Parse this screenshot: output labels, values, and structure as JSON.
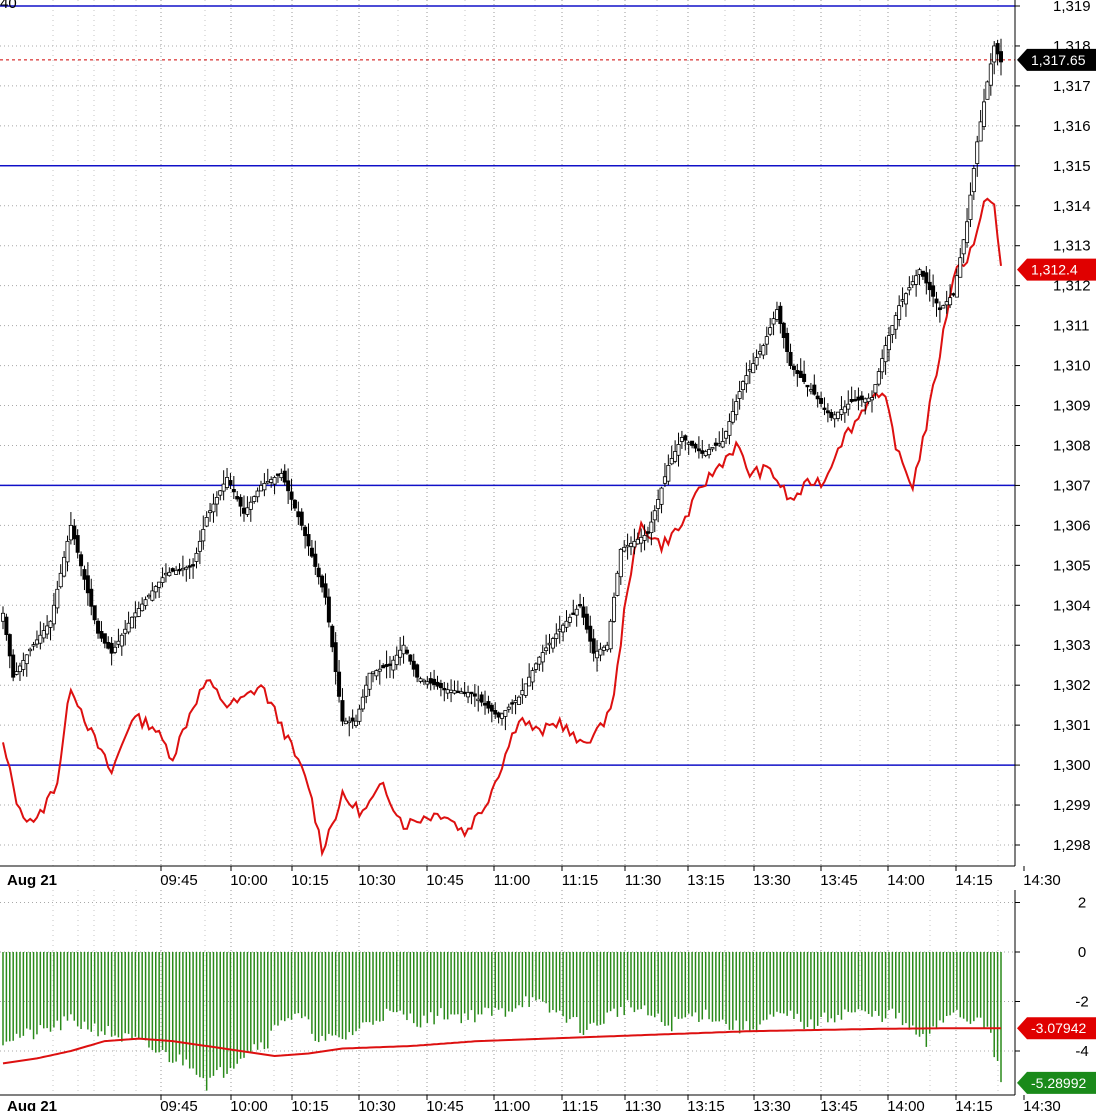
{
  "chart_data": [
    {
      "type": "candlestick",
      "y_ticks": [
        "1,298",
        "1,299",
        "1,300",
        "1,301",
        "1,302",
        "1,303",
        "1,304",
        "1,305",
        "1,306",
        "1,307",
        "1,308",
        "1,309",
        "1,310",
        "1,311",
        "1,312",
        "1,313",
        "1,314",
        "1,315",
        "1,316",
        "1,317",
        "1,318",
        "1,319"
      ],
      "y_tick_values": [
        1298,
        1299,
        1300,
        1301,
        1302,
        1303,
        1304,
        1305,
        1306,
        1307,
        1308,
        1309,
        1310,
        1311,
        1312,
        1313,
        1314,
        1315,
        1316,
        1317,
        1318,
        1319
      ],
      "ylim": [
        1297.6,
        1319.2
      ],
      "x_date_label": "Aug 21",
      "x_ticks": [
        "09:45",
        "10:00",
        "10:15",
        "10:30",
        "10:45",
        "11:00",
        "11:15",
        "11:30",
        "13:15",
        "13:30",
        "13:45",
        "14:00",
        "14:15",
        "14:30"
      ],
      "top_left_fragment": "40",
      "horizontal_lines": [
        1300,
        1307,
        1315,
        1319
      ],
      "last_price_line": 1317.65,
      "badges": [
        {
          "text": "1,317.65",
          "value": 1317.65,
          "color": "#000000"
        },
        {
          "text": "1,312.4",
          "value": 1312.4,
          "color": "#e00000"
        }
      ],
      "candle_key_points": [
        [
          0,
          1303.8
        ],
        [
          3,
          1302.2
        ],
        [
          8,
          1302.9
        ],
        [
          14,
          1303.6
        ],
        [
          20,
          1306.0
        ],
        [
          28,
          1303.3
        ],
        [
          32,
          1302.8
        ],
        [
          38,
          1303.7
        ],
        [
          48,
          1304.8
        ],
        [
          56,
          1305.0
        ],
        [
          60,
          1306.2
        ],
        [
          66,
          1307.2
        ],
        [
          71,
          1306.3
        ],
        [
          76,
          1307.0
        ],
        [
          82,
          1307.3
        ],
        [
          88,
          1306.0
        ],
        [
          95,
          1304.2
        ],
        [
          100,
          1301.1
        ],
        [
          104,
          1301.1
        ],
        [
          108,
          1302.3
        ],
        [
          114,
          1302.5
        ],
        [
          118,
          1303.0
        ],
        [
          122,
          1302.2
        ],
        [
          130,
          1301.9
        ],
        [
          138,
          1301.8
        ],
        [
          146,
          1301.2
        ],
        [
          152,
          1301.7
        ],
        [
          158,
          1302.7
        ],
        [
          164,
          1303.4
        ],
        [
          170,
          1304.0
        ],
        [
          174,
          1302.8
        ],
        [
          178,
          1303.0
        ],
        [
          182,
          1305.4
        ],
        [
          190,
          1305.8
        ],
        [
          196,
          1307.5
        ],
        [
          200,
          1308.2
        ],
        [
          206,
          1307.8
        ],
        [
          212,
          1308.1
        ],
        [
          218,
          1309.6
        ],
        [
          224,
          1310.5
        ],
        [
          228,
          1311.4
        ],
        [
          232,
          1310.0
        ],
        [
          238,
          1309.4
        ],
        [
          244,
          1308.7
        ],
        [
          250,
          1309.1
        ],
        [
          256,
          1309.2
        ],
        [
          260,
          1310.5
        ],
        [
          264,
          1311.5
        ],
        [
          270,
          1312.4
        ],
        [
          276,
          1311.4
        ],
        [
          280,
          1311.8
        ],
        [
          284,
          1313.6
        ],
        [
          287,
          1315.6
        ],
        [
          290,
          1317.1
        ],
        [
          292,
          1318.0
        ],
        [
          294,
          1317.6
        ]
      ],
      "candle_count": 295,
      "red_line_key_points": [
        [
          0,
          1300.5
        ],
        [
          5,
          1298.8
        ],
        [
          10,
          1298.6
        ],
        [
          16,
          1299.6
        ],
        [
          20,
          1302.0
        ],
        [
          26,
          1300.8
        ],
        [
          32,
          1299.8
        ],
        [
          38,
          1301.2
        ],
        [
          44,
          1301.0
        ],
        [
          50,
          1300.2
        ],
        [
          56,
          1301.5
        ],
        [
          60,
          1302.1
        ],
        [
          66,
          1301.5
        ],
        [
          70,
          1301.6
        ],
        [
          76,
          1302.0
        ],
        [
          82,
          1301.0
        ],
        [
          90,
          1299.5
        ],
        [
          94,
          1297.9
        ],
        [
          100,
          1299.2
        ],
        [
          106,
          1298.8
        ],
        [
          112,
          1299.5
        ],
        [
          118,
          1298.5
        ],
        [
          124,
          1298.7
        ],
        [
          130,
          1298.8
        ],
        [
          136,
          1298.3
        ],
        [
          142,
          1299.0
        ],
        [
          146,
          1299.8
        ],
        [
          152,
          1301.2
        ],
        [
          158,
          1300.8
        ],
        [
          164,
          1301.1
        ],
        [
          170,
          1300.5
        ],
        [
          176,
          1300.9
        ],
        [
          180,
          1301.7
        ],
        [
          184,
          1304.5
        ],
        [
          188,
          1306.0
        ],
        [
          194,
          1305.5
        ],
        [
          200,
          1306.0
        ],
        [
          206,
          1307.0
        ],
        [
          212,
          1307.6
        ],
        [
          216,
          1308.0
        ],
        [
          220,
          1307.3
        ],
        [
          226,
          1307.4
        ],
        [
          232,
          1306.6
        ],
        [
          238,
          1307.1
        ],
        [
          242,
          1307.1
        ],
        [
          246,
          1308.0
        ],
        [
          252,
          1308.7
        ],
        [
          256,
          1309.3
        ],
        [
          260,
          1309.1
        ],
        [
          264,
          1307.7
        ],
        [
          268,
          1307.0
        ],
        [
          272,
          1308.5
        ],
        [
          276,
          1310.3
        ],
        [
          280,
          1312.3
        ],
        [
          284,
          1312.7
        ],
        [
          287,
          1313.3
        ],
        [
          290,
          1314.3
        ],
        [
          292,
          1314.0
        ],
        [
          294,
          1312.4
        ]
      ]
    },
    {
      "type": "bar",
      "y_ticks": [
        "2",
        "0",
        "-2",
        "-4"
      ],
      "y_tick_values": [
        2,
        0,
        -2,
        -4
      ],
      "ylim": [
        -5.5,
        2.4
      ],
      "x_date_label": "Aug 21",
      "x_ticks": [
        "09:45",
        "10:00",
        "10:15",
        "10:30",
        "10:45",
        "11:00",
        "11:15",
        "11:30",
        "13:15",
        "13:30",
        "13:45",
        "14:00",
        "14:15",
        "14:30"
      ],
      "badges": [
        {
          "text": "-3.07942",
          "value": -3.07942,
          "color": "#e00000"
        },
        {
          "text": "-5.28992",
          "value": -5.28992,
          "color": "#1a8a1a"
        }
      ],
      "bar_key_points": [
        [
          0,
          -3.5
        ],
        [
          10,
          -3.3
        ],
        [
          20,
          -2.8
        ],
        [
          30,
          -3.2
        ],
        [
          40,
          -3.7
        ],
        [
          50,
          -4.3
        ],
        [
          56,
          -4.5
        ],
        [
          60,
          -5.3
        ],
        [
          66,
          -4.7
        ],
        [
          72,
          -3.9
        ],
        [
          78,
          -3.6
        ],
        [
          82,
          -2.6
        ],
        [
          88,
          -2.7
        ],
        [
          94,
          -3.6
        ],
        [
          100,
          -3.5
        ],
        [
          106,
          -3.0
        ],
        [
          112,
          -2.5
        ],
        [
          118,
          -2.6
        ],
        [
          124,
          -2.8
        ],
        [
          130,
          -2.5
        ],
        [
          136,
          -2.6
        ],
        [
          142,
          -2.5
        ],
        [
          148,
          -2.4
        ],
        [
          154,
          -1.9
        ],
        [
          160,
          -2.3
        ],
        [
          166,
          -2.6
        ],
        [
          172,
          -3.2
        ],
        [
          178,
          -2.6
        ],
        [
          184,
          -2.2
        ],
        [
          190,
          -2.5
        ],
        [
          196,
          -3.0
        ],
        [
          202,
          -2.6
        ],
        [
          208,
          -2.5
        ],
        [
          214,
          -3.0
        ],
        [
          220,
          -3.1
        ],
        [
          226,
          -2.7
        ],
        [
          232,
          -2.6
        ],
        [
          238,
          -3.0
        ],
        [
          244,
          -2.6
        ],
        [
          250,
          -2.4
        ],
        [
          256,
          -2.6
        ],
        [
          262,
          -2.5
        ],
        [
          268,
          -3.2
        ],
        [
          272,
          -3.7
        ],
        [
          276,
          -2.8
        ],
        [
          280,
          -2.3
        ],
        [
          284,
          -2.8
        ],
        [
          288,
          -2.5
        ],
        [
          291,
          -3.5
        ],
        [
          294,
          -5.3
        ]
      ],
      "signal_key_points": [
        [
          0,
          -4.5
        ],
        [
          10,
          -4.3
        ],
        [
          20,
          -4.0
        ],
        [
          30,
          -3.6
        ],
        [
          40,
          -3.5
        ],
        [
          50,
          -3.6
        ],
        [
          60,
          -3.8
        ],
        [
          70,
          -4.0
        ],
        [
          80,
          -4.2
        ],
        [
          90,
          -4.1
        ],
        [
          100,
          -3.9
        ],
        [
          120,
          -3.8
        ],
        [
          140,
          -3.6
        ],
        [
          160,
          -3.5
        ],
        [
          180,
          -3.4
        ],
        [
          200,
          -3.3
        ],
        [
          220,
          -3.2
        ],
        [
          240,
          -3.15
        ],
        [
          260,
          -3.1
        ],
        [
          280,
          -3.08
        ],
        [
          294,
          -3.08
        ]
      ]
    }
  ]
}
